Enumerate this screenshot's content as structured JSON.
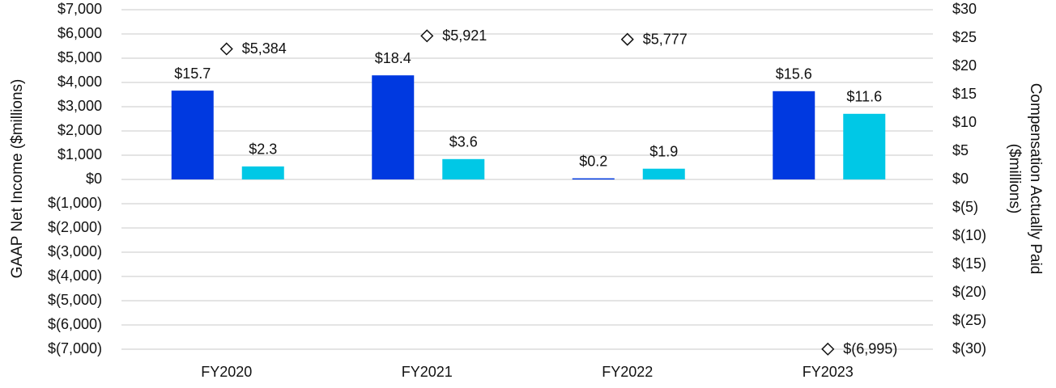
{
  "chart_data": {
    "type": "bar",
    "ylabel": "GAAP Net Income ($millions)",
    "y2label": [
      "Compensation Actually Paid",
      "($millions)"
    ],
    "categories": [
      "FY2020",
      "FY2021",
      "FY2022",
      "FY2023"
    ],
    "series": [
      {
        "color": "#0039e0",
        "axis": "y2",
        "values": [
          15.7,
          18.4,
          0.2,
          15.6
        ],
        "value_labels": [
          "$15.7",
          "$18.4",
          "$0.2",
          "$15.6"
        ]
      },
      {
        "color": "#00c8e6",
        "axis": "y2",
        "values": [
          2.3,
          3.6,
          1.9,
          11.6
        ],
        "value_labels": [
          "$2.3",
          "$3.6",
          "$1.9",
          "$11.6"
        ]
      }
    ],
    "markers": {
      "marker": "diamond",
      "color": "#111111",
      "axis": "y",
      "values": [
        5384,
        5921,
        5777,
        -6995
      ],
      "value_labels": [
        "$5,384",
        "$5,921",
        "$5,777",
        "$(6,995)"
      ]
    },
    "ylim": [
      -7000,
      7000
    ],
    "yticks": [
      {
        "value": 7000,
        "label": "$7,000"
      },
      {
        "value": 6000,
        "label": "$6,000"
      },
      {
        "value": 5000,
        "label": "$5,000"
      },
      {
        "value": 4000,
        "label": "$4,000"
      },
      {
        "value": 3000,
        "label": "$3,000"
      },
      {
        "value": 2000,
        "label": "$2,000"
      },
      {
        "value": 1000,
        "label": "$1,000"
      },
      {
        "value": 0,
        "label": "$0"
      },
      {
        "value": -1000,
        "label": "$(1,000)"
      },
      {
        "value": -2000,
        "label": "$(2,000)"
      },
      {
        "value": -3000,
        "label": "$(3,000)"
      },
      {
        "value": -4000,
        "label": "$(4,000)"
      },
      {
        "value": -5000,
        "label": "$(5,000)"
      },
      {
        "value": -6000,
        "label": "$(6,000)"
      },
      {
        "value": -7000,
        "label": "$(7,000)"
      }
    ],
    "y2lim": [
      -30,
      30
    ],
    "y2ticks": [
      {
        "value": 30,
        "label": "$30"
      },
      {
        "value": 25,
        "label": "$25"
      },
      {
        "value": 20,
        "label": "$20"
      },
      {
        "value": 15,
        "label": "$15"
      },
      {
        "value": 10,
        "label": "$10"
      },
      {
        "value": 5,
        "label": "$5"
      },
      {
        "value": 0,
        "label": "$0"
      },
      {
        "value": -5,
        "label": "$(5)"
      },
      {
        "value": -10,
        "label": "$(10)"
      },
      {
        "value": -15,
        "label": "$(15)"
      },
      {
        "value": -20,
        "label": "$(20)"
      },
      {
        "value": -25,
        "label": "$(25)"
      },
      {
        "value": -30,
        "label": "$(30)"
      }
    ],
    "grid": true
  }
}
